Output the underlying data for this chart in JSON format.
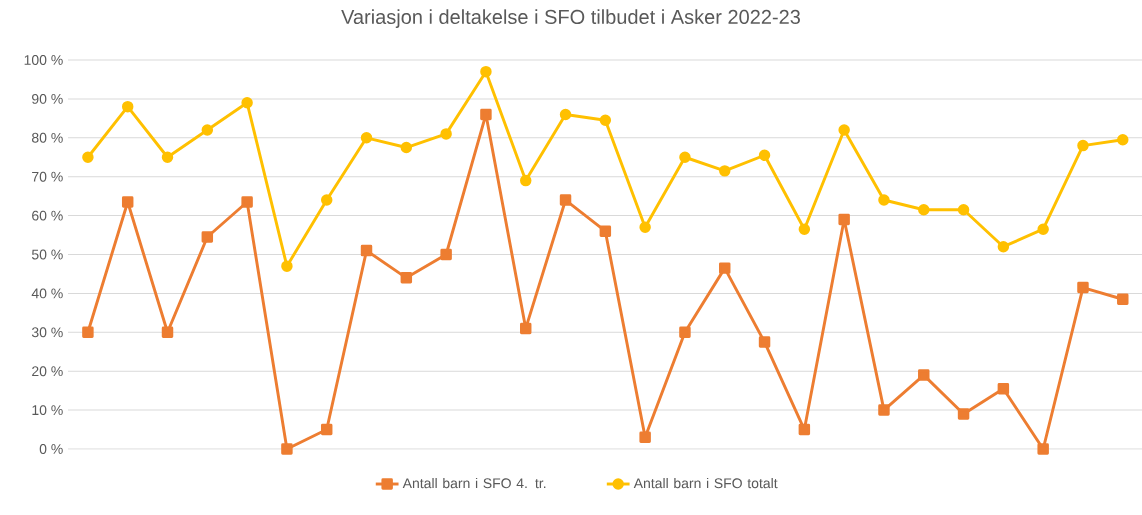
{
  "chart_data": {
    "type": "line",
    "title": "Variasjon i deltakelse i SFO tilbudet i Asker 2022-23",
    "categories": [
      null,
      null,
      null,
      null,
      null,
      null,
      null,
      null,
      null,
      null,
      null,
      null,
      null,
      null,
      null,
      null,
      null,
      null,
      null,
      null,
      null,
      null,
      null,
      null,
      null,
      null,
      null
    ],
    "series": [
      {
        "name": "Antall barn i SFO 4. tr.",
        "color": "#ed7d31",
        "marker": "square",
        "values": [
          30,
          63.5,
          30,
          54.5,
          63.5,
          0,
          5,
          51,
          44,
          50,
          86,
          31,
          64,
          56,
          3,
          30,
          46.5,
          27.5,
          5,
          59,
          10,
          19,
          9,
          15.5,
          0,
          41.5,
          38.5
        ]
      },
      {
        "name": "Antall barn i SFO totalt",
        "color": "#ffc000",
        "marker": "circle",
        "values": [
          75,
          88,
          75,
          82,
          89,
          47,
          64,
          80,
          77.5,
          81,
          97,
          69,
          86,
          84.5,
          57,
          75,
          71.5,
          75.5,
          56.5,
          82,
          64,
          61.5,
          61.5,
          52,
          56.5,
          78,
          79.5
        ]
      }
    ],
    "ylim": [
      0,
      100
    ],
    "yticks": [
      {
        "value": 0,
        "label": "0 %"
      },
      {
        "value": 10,
        "label": "10 %"
      },
      {
        "value": 20,
        "label": "20 %"
      },
      {
        "value": 30,
        "label": "30 %"
      },
      {
        "value": 40,
        "label": "40 %"
      },
      {
        "value": 50,
        "label": "50 %"
      },
      {
        "value": 60,
        "label": "60 %"
      },
      {
        "value": 70,
        "label": "70 %"
      },
      {
        "value": 80,
        "label": "80 %"
      },
      {
        "value": 90,
        "label": "90 %"
      },
      {
        "value": 100,
        "label": "100 %"
      }
    ],
    "grid": "y",
    "legend": "bottom",
    "line_style": "solid"
  }
}
